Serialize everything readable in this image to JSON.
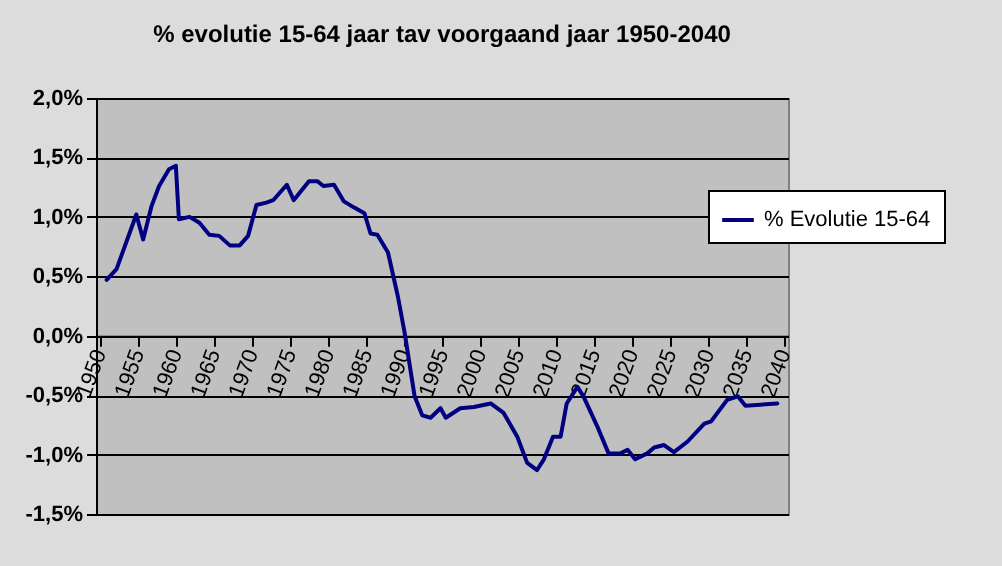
{
  "chart_data": {
    "type": "line",
    "title": "% evolutie 15-64 jaar tav voorgaand jaar 1950-2040",
    "series": [
      {
        "name": "% Evolutie 15-64",
        "color": "#000080",
        "x": [
          1950.9,
          1952.2,
          1954.8,
          1955.7,
          1956.8,
          1957.8,
          1959.1,
          1960,
          1960.4,
          1961.8,
          1963.1,
          1964.4,
          1965.7,
          1967.1,
          1968.4,
          1969.5,
          1970.6,
          1971.9,
          1972.8,
          1974.6,
          1975.5,
          1977.5,
          1978.6,
          1979.4,
          1980.8,
          1982.1,
          1983.4,
          1984.8,
          1985.6,
          1986.5,
          1987.9,
          1989.2,
          1990.1,
          1991.4,
          1992.4,
          1993.5,
          1994.8,
          1995.5,
          1997.4,
          1999.2,
          2001.4,
          2003.1,
          2004.9,
          2006.2,
          2007.5,
          2008.4,
          2009.6,
          2010.6,
          2011.4,
          2012.8,
          2013.6,
          2015.4,
          2016.9,
          2018.5,
          2019.4,
          2020.4,
          2022,
          2022.9,
          2024.2,
          2025.5,
          2027.3,
          2029.5,
          2030.4,
          2032.5,
          2033.9,
          2034.9,
          2036.9,
          2039.1
        ],
        "values": [
          0.47,
          0.56,
          1.02,
          0.81,
          1.09,
          1.26,
          1.4,
          1.43,
          0.98,
          1.0,
          0.95,
          0.85,
          0.84,
          0.76,
          0.76,
          0.84,
          1.1,
          1.12,
          1.14,
          1.27,
          1.14,
          1.3,
          1.3,
          1.26,
          1.27,
          1.13,
          1.08,
          1.03,
          0.86,
          0.85,
          0.7,
          0.33,
          0.02,
          -0.51,
          -0.67,
          -0.69,
          -0.61,
          -0.69,
          -0.61,
          -0.6,
          -0.57,
          -0.65,
          -0.85,
          -1.07,
          -1.13,
          -1.04,
          -0.85,
          -0.85,
          -0.57,
          -0.43,
          -0.51,
          -0.76,
          -0.99,
          -0.99,
          -0.96,
          -1.04,
          -0.99,
          -0.94,
          -0.92,
          -0.98,
          -0.89,
          -0.74,
          -0.72,
          -0.54,
          -0.51,
          -0.59,
          -0.58,
          -0.57
        ]
      }
    ],
    "xlim": [
      1949.5,
      2040.5
    ],
    "xticks": [
      1950,
      1955,
      1960,
      1965,
      1970,
      1975,
      1980,
      1985,
      1990,
      1995,
      2000,
      2005,
      2010,
      2015,
      2020,
      2025,
      2030,
      2035,
      2040
    ],
    "ylim": [
      -1.5,
      2.0
    ],
    "yticks": [
      {
        "value": -1.5,
        "label": "-1,5%"
      },
      {
        "value": -1.0,
        "label": "-1,0%"
      },
      {
        "value": -0.5,
        "label": "-0,5%"
      },
      {
        "value": 0,
        "label": "0,0%"
      },
      {
        "value": 0.5,
        "label": "0,5%"
      },
      {
        "value": 1.0,
        "label": "1,0%"
      },
      {
        "value": 1.5,
        "label": "1,5%"
      },
      {
        "value": 2.0,
        "label": "2,0%"
      }
    ],
    "grid": "y",
    "legend": "right",
    "marker": "none",
    "line_style": "solid"
  }
}
